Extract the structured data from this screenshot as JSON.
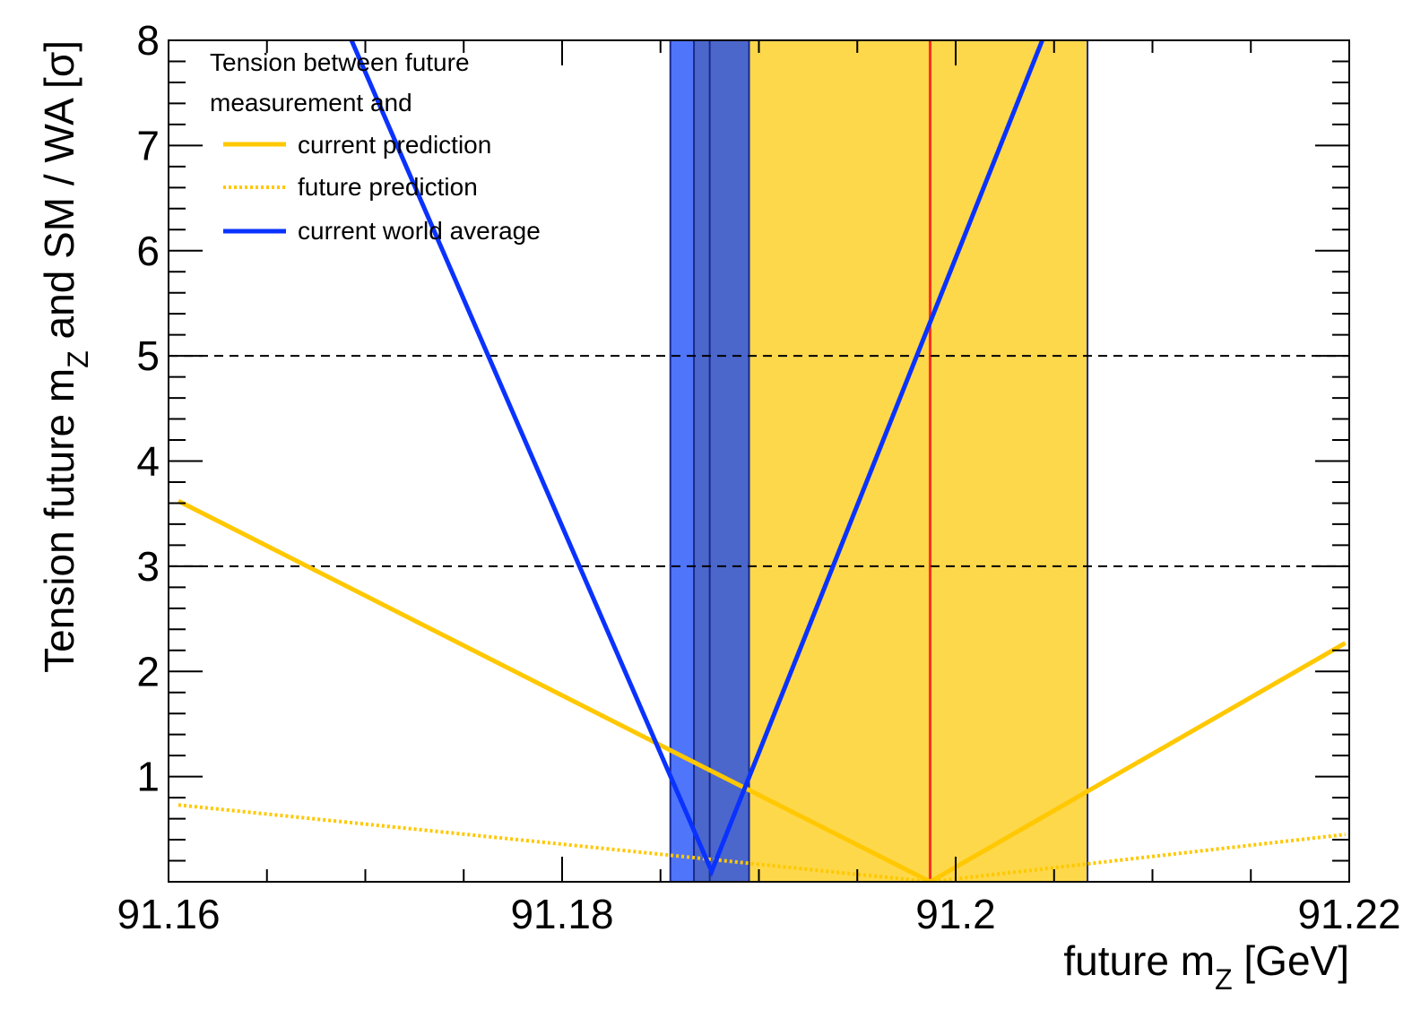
{
  "chart_data": {
    "type": "line",
    "xlabel": "future m",
    "xlabel_sub": "Z",
    "xlabel_unit": " [GeV]",
    "ylabel": "Tension future m",
    "ylabel_sub": "Z",
    "ylabel_rest": " and SM / WA [σ]",
    "xlim": [
      91.16,
      91.22
    ],
    "ylim": [
      0,
      8
    ],
    "x_ticks": [
      91.16,
      91.18,
      91.2,
      91.22
    ],
    "x_tick_labels": [
      "91.16",
      "91.18",
      "91.2",
      "91.22"
    ],
    "y_ticks": [
      1,
      2,
      3,
      4,
      5,
      6,
      7,
      8
    ],
    "y_tick_labels": [
      "1",
      "2",
      "3",
      "4",
      "5",
      "6",
      "7",
      "8"
    ],
    "reference_lines": [
      3,
      5
    ],
    "legend": {
      "placement": "top-left",
      "header_line1": "Tension between future",
      "header_line2": "measurement and"
    },
    "bands": [
      {
        "from": 91.1855,
        "to": 91.1895,
        "color": "#4b67cc",
        "label": "world average band"
      },
      {
        "from": 91.1855,
        "to": 91.1867,
        "color": "#4f75fb",
        "label": "world average inner band"
      },
      {
        "from": 91.1895,
        "to": 91.2067,
        "color": "#fdd84a",
        "label": "SM prediction band"
      }
    ],
    "band_edges": [
      91.1855,
      91.1867,
      91.1875,
      91.1895,
      91.2067
    ],
    "band_edge_color": "#1a2a8a",
    "prediction_line": {
      "x": 91.1987,
      "color": "#ff2d1f"
    },
    "series": [
      {
        "name": "current prediction",
        "color": "#ffc800",
        "style": "solid",
        "x": [
          91.1605,
          91.1987,
          91.2198
        ],
        "y": [
          3.62,
          0.0,
          2.27
        ]
      },
      {
        "name": "future prediction",
        "color": "#ffc800",
        "style": "dotted",
        "x": [
          91.1605,
          91.1987,
          91.2198
        ],
        "y": [
          0.73,
          0.0,
          0.45
        ]
      },
      {
        "name": "current world average",
        "color": "#0a32ff",
        "style": "solid",
        "x": [
          91.1693,
          91.1876,
          91.2044
        ],
        "y": [
          8.0,
          0.1,
          8.0
        ]
      }
    ]
  }
}
